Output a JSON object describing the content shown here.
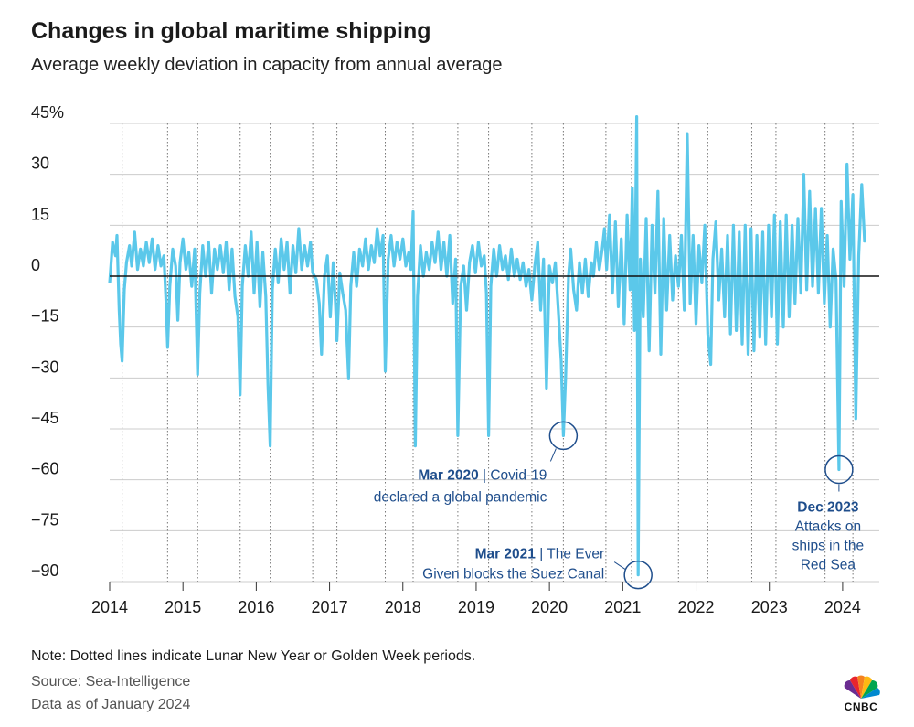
{
  "header": {
    "title": "Changes in global maritime shipping",
    "subtitle": "Average weekly deviation in capacity from annual average"
  },
  "footer": {
    "note": "Note: Dotted lines indicate Lunar New Year or Golden Week periods.",
    "source": "Source: Sea-Intelligence",
    "as_of": "Data as of January 2024",
    "logo_text": "CNBC"
  },
  "colors": {
    "line": "#5bc8ea",
    "annotation": "#1f4e8c",
    "grid": "#cccccc",
    "zero_line": "#111111"
  },
  "chart_data": {
    "type": "line",
    "title": "Changes in global maritime shipping",
    "subtitle": "Average weekly deviation in capacity from annual average",
    "xlabel": "",
    "ylabel": "",
    "y_unit": "%",
    "xlim": [
      2014.0,
      2024.5
    ],
    "ylim": [
      -90,
      45
    ],
    "yticks": [
      45,
      30,
      15,
      0,
      -15,
      -30,
      -45,
      -60,
      -75,
      -90
    ],
    "ytick_labels": [
      "45%",
      "30",
      "15",
      "0",
      "−15",
      "−30",
      "−45",
      "−60",
      "−75",
      "−90"
    ],
    "xticks": [
      2014,
      2015,
      2016,
      2017,
      2018,
      2019,
      2020,
      2021,
      2022,
      2023,
      2024
    ],
    "xtick_labels": [
      "2014",
      "2015",
      "2016",
      "2017",
      "2018",
      "2019",
      "2020",
      "2021",
      "2022",
      "2023",
      "2024"
    ],
    "grid": "horizontal",
    "dotted_period_lines": [
      2014.17,
      2014.79,
      2015.2,
      2015.78,
      2016.19,
      2016.77,
      2017.1,
      2017.76,
      2018.14,
      2018.75,
      2019.17,
      2019.76,
      2020.19,
      2020.77,
      2021.12,
      2021.76,
      2022.16,
      2022.76,
      2023.09,
      2023.76,
      2024.14
    ],
    "series": [
      {
        "name": "Capacity deviation",
        "points": [
          [
            2014.0,
            -2
          ],
          [
            2014.04,
            10
          ],
          [
            2014.08,
            6
          ],
          [
            2014.1,
            12
          ],
          [
            2014.13,
            -10
          ],
          [
            2014.15,
            -20
          ],
          [
            2014.17,
            -25
          ],
          [
            2014.2,
            -4
          ],
          [
            2014.23,
            4
          ],
          [
            2014.27,
            9
          ],
          [
            2014.3,
            3
          ],
          [
            2014.34,
            13
          ],
          [
            2014.38,
            2
          ],
          [
            2014.42,
            8
          ],
          [
            2014.46,
            3
          ],
          [
            2014.5,
            10
          ],
          [
            2014.54,
            4
          ],
          [
            2014.58,
            11
          ],
          [
            2014.62,
            2
          ],
          [
            2014.66,
            9
          ],
          [
            2014.7,
            3
          ],
          [
            2014.74,
            6
          ],
          [
            2014.77,
            -8
          ],
          [
            2014.79,
            -21
          ],
          [
            2014.82,
            -3
          ],
          [
            2014.86,
            8
          ],
          [
            2014.9,
            3
          ],
          [
            2014.93,
            -13
          ],
          [
            2014.96,
            4
          ],
          [
            2015.0,
            11
          ],
          [
            2015.04,
            2
          ],
          [
            2015.08,
            7
          ],
          [
            2015.12,
            -3
          ],
          [
            2015.16,
            8
          ],
          [
            2015.2,
            -29
          ],
          [
            2015.23,
            -5
          ],
          [
            2015.27,
            9
          ],
          [
            2015.31,
            0
          ],
          [
            2015.35,
            10
          ],
          [
            2015.39,
            -5
          ],
          [
            2015.43,
            8
          ],
          [
            2015.47,
            2
          ],
          [
            2015.51,
            9
          ],
          [
            2015.55,
            1
          ],
          [
            2015.59,
            10
          ],
          [
            2015.63,
            -4
          ],
          [
            2015.67,
            8
          ],
          [
            2015.71,
            -6
          ],
          [
            2015.75,
            -12
          ],
          [
            2015.78,
            -35
          ],
          [
            2015.81,
            -3
          ],
          [
            2015.85,
            9
          ],
          [
            2015.89,
            0
          ],
          [
            2015.93,
            13
          ],
          [
            2015.97,
            -5
          ],
          [
            2016.01,
            10
          ],
          [
            2016.05,
            -9
          ],
          [
            2016.09,
            7
          ],
          [
            2016.13,
            -6
          ],
          [
            2016.16,
            -32
          ],
          [
            2016.19,
            -50
          ],
          [
            2016.22,
            -4
          ],
          [
            2016.26,
            8
          ],
          [
            2016.3,
            -2
          ],
          [
            2016.34,
            11
          ],
          [
            2016.38,
            2
          ],
          [
            2016.42,
            10
          ],
          [
            2016.46,
            -5
          ],
          [
            2016.5,
            9
          ],
          [
            2016.54,
            1
          ],
          [
            2016.58,
            14
          ],
          [
            2016.62,
            2
          ],
          [
            2016.66,
            9
          ],
          [
            2016.7,
            3
          ],
          [
            2016.74,
            10
          ],
          [
            2016.77,
            1
          ],
          [
            2016.82,
            -1
          ],
          [
            2016.86,
            -8
          ],
          [
            2016.89,
            -23
          ],
          [
            2016.93,
            0
          ],
          [
            2016.97,
            6
          ],
          [
            2017.01,
            -12
          ],
          [
            2017.05,
            4
          ],
          [
            2017.08,
            -8
          ],
          [
            2017.1,
            -19
          ],
          [
            2017.14,
            1
          ],
          [
            2017.18,
            -5
          ],
          [
            2017.22,
            -10
          ],
          [
            2017.26,
            -30
          ],
          [
            2017.29,
            -3
          ],
          [
            2017.33,
            7
          ],
          [
            2017.37,
            -3
          ],
          [
            2017.41,
            8
          ],
          [
            2017.45,
            3
          ],
          [
            2017.49,
            11
          ],
          [
            2017.53,
            2
          ],
          [
            2017.57,
            9
          ],
          [
            2017.61,
            4
          ],
          [
            2017.65,
            14
          ],
          [
            2017.69,
            6
          ],
          [
            2017.73,
            12
          ],
          [
            2017.76,
            -28
          ],
          [
            2017.8,
            5
          ],
          [
            2017.84,
            12
          ],
          [
            2017.88,
            3
          ],
          [
            2017.92,
            10
          ],
          [
            2017.96,
            5
          ],
          [
            2018.0,
            11
          ],
          [
            2018.04,
            3
          ],
          [
            2018.08,
            7
          ],
          [
            2018.11,
            2
          ],
          [
            2018.14,
            19
          ],
          [
            2018.17,
            -50
          ],
          [
            2018.2,
            -6
          ],
          [
            2018.24,
            9
          ],
          [
            2018.28,
            0
          ],
          [
            2018.32,
            7
          ],
          [
            2018.36,
            2
          ],
          [
            2018.4,
            10
          ],
          [
            2018.44,
            4
          ],
          [
            2018.48,
            13
          ],
          [
            2018.52,
            2
          ],
          [
            2018.56,
            10
          ],
          [
            2018.6,
            0
          ],
          [
            2018.64,
            12
          ],
          [
            2018.68,
            -8
          ],
          [
            2018.72,
            5
          ],
          [
            2018.75,
            -47
          ],
          [
            2018.79,
            -3
          ],
          [
            2018.83,
            3
          ],
          [
            2018.87,
            -10
          ],
          [
            2018.91,
            4
          ],
          [
            2018.95,
            9
          ],
          [
            2018.99,
            1
          ],
          [
            2019.03,
            10
          ],
          [
            2019.07,
            3
          ],
          [
            2019.11,
            6
          ],
          [
            2019.14,
            -5
          ],
          [
            2019.17,
            -47
          ],
          [
            2019.2,
            -3
          ],
          [
            2019.24,
            8
          ],
          [
            2019.28,
            0
          ],
          [
            2019.32,
            9
          ],
          [
            2019.36,
            2
          ],
          [
            2019.4,
            6
          ],
          [
            2019.44,
            -1
          ],
          [
            2019.48,
            8
          ],
          [
            2019.52,
            0
          ],
          [
            2019.56,
            5
          ],
          [
            2019.6,
            -1
          ],
          [
            2019.64,
            4
          ],
          [
            2019.68,
            -3
          ],
          [
            2019.72,
            2
          ],
          [
            2019.76,
            -7
          ],
          [
            2019.8,
            3
          ],
          [
            2019.84,
            10
          ],
          [
            2019.88,
            -10
          ],
          [
            2019.92,
            5
          ],
          [
            2019.96,
            -33
          ],
          [
            2020.0,
            3
          ],
          [
            2020.04,
            -2
          ],
          [
            2020.08,
            4
          ],
          [
            2020.12,
            -10
          ],
          [
            2020.16,
            -25
          ],
          [
            2020.19,
            -47
          ],
          [
            2020.22,
            -30
          ],
          [
            2020.26,
            0
          ],
          [
            2020.29,
            8
          ],
          [
            2020.33,
            -4
          ],
          [
            2020.37,
            -10
          ],
          [
            2020.41,
            4
          ],
          [
            2020.45,
            -5
          ],
          [
            2020.49,
            5
          ],
          [
            2020.53,
            -6
          ],
          [
            2020.57,
            4
          ],
          [
            2020.6,
            0
          ],
          [
            2020.64,
            10
          ],
          [
            2020.68,
            2
          ],
          [
            2020.72,
            8
          ],
          [
            2020.75,
            14
          ],
          [
            2020.78,
            2
          ],
          [
            2020.82,
            18
          ],
          [
            2020.86,
            -5
          ],
          [
            2020.9,
            16
          ],
          [
            2020.94,
            -9
          ],
          [
            2020.98,
            11
          ],
          [
            2021.02,
            -14
          ],
          [
            2021.06,
            18
          ],
          [
            2021.1,
            -4
          ],
          [
            2021.13,
            26
          ],
          [
            2021.16,
            -16
          ],
          [
            2021.19,
            47
          ],
          [
            2021.21,
            -88
          ],
          [
            2021.24,
            5
          ],
          [
            2021.28,
            -12
          ],
          [
            2021.32,
            17
          ],
          [
            2021.36,
            -22
          ],
          [
            2021.4,
            15
          ],
          [
            2021.44,
            -5
          ],
          [
            2021.48,
            25
          ],
          [
            2021.52,
            -23
          ],
          [
            2021.56,
            17
          ],
          [
            2021.6,
            -10
          ],
          [
            2021.64,
            12
          ],
          [
            2021.68,
            -7
          ],
          [
            2021.72,
            6
          ],
          [
            2021.76,
            -3
          ],
          [
            2021.8,
            12
          ],
          [
            2021.84,
            -10
          ],
          [
            2021.88,
            42
          ],
          [
            2021.92,
            -8
          ],
          [
            2021.96,
            12
          ],
          [
            2022.0,
            -14
          ],
          [
            2022.04,
            9
          ],
          [
            2022.08,
            -2
          ],
          [
            2022.12,
            15
          ],
          [
            2022.16,
            -17
          ],
          [
            2022.2,
            -26
          ],
          [
            2022.23,
            5
          ],
          [
            2022.27,
            16
          ],
          [
            2022.31,
            -7
          ],
          [
            2022.35,
            8
          ],
          [
            2022.39,
            -12
          ],
          [
            2022.43,
            12
          ],
          [
            2022.47,
            -17
          ],
          [
            2022.51,
            15
          ],
          [
            2022.55,
            -16
          ],
          [
            2022.59,
            13
          ],
          [
            2022.63,
            -20
          ],
          [
            2022.67,
            15
          ],
          [
            2022.71,
            -23
          ],
          [
            2022.75,
            14
          ],
          [
            2022.79,
            -22
          ],
          [
            2022.83,
            12
          ],
          [
            2022.87,
            -18
          ],
          [
            2022.91,
            13
          ],
          [
            2022.95,
            -20
          ],
          [
            2022.99,
            15
          ],
          [
            2023.03,
            -12
          ],
          [
            2023.07,
            18
          ],
          [
            2023.11,
            -20
          ],
          [
            2023.15,
            16
          ],
          [
            2023.19,
            -15
          ],
          [
            2023.23,
            18
          ],
          [
            2023.27,
            -12
          ],
          [
            2023.31,
            15
          ],
          [
            2023.35,
            -8
          ],
          [
            2023.39,
            17
          ],
          [
            2023.43,
            -5
          ],
          [
            2023.47,
            30
          ],
          [
            2023.51,
            -4
          ],
          [
            2023.55,
            25
          ],
          [
            2023.59,
            -3
          ],
          [
            2023.63,
            20
          ],
          [
            2023.67,
            -5
          ],
          [
            2023.71,
            20
          ],
          [
            2023.75,
            -8
          ],
          [
            2023.79,
            12
          ],
          [
            2023.83,
            -15
          ],
          [
            2023.87,
            8
          ],
          [
            2023.91,
            -1
          ],
          [
            2023.95,
            -57
          ],
          [
            2023.98,
            22
          ],
          [
            2024.02,
            -3
          ],
          [
            2024.06,
            33
          ],
          [
            2024.1,
            5
          ],
          [
            2024.14,
            24
          ],
          [
            2024.18,
            -42
          ],
          [
            2024.22,
            6
          ],
          [
            2024.26,
            27
          ],
          [
            2024.3,
            10
          ]
        ]
      }
    ],
    "annotations": [
      {
        "title": "Mar 2020",
        "text_line1": " | Covid-19",
        "text_line2": "declared a global pandemic",
        "point": [
          2020.19,
          -47
        ]
      },
      {
        "title": "Mar 2021",
        "text_line1": " | The Ever",
        "text_line2": "Given blocks the Suez Canal",
        "point": [
          2021.21,
          -88
        ]
      },
      {
        "title": "Dec 2023",
        "text_line1": "Attacks on",
        "text_line2": "ships in the",
        "text_line3": "Red Sea",
        "point": [
          2023.95,
          -57
        ]
      }
    ]
  }
}
